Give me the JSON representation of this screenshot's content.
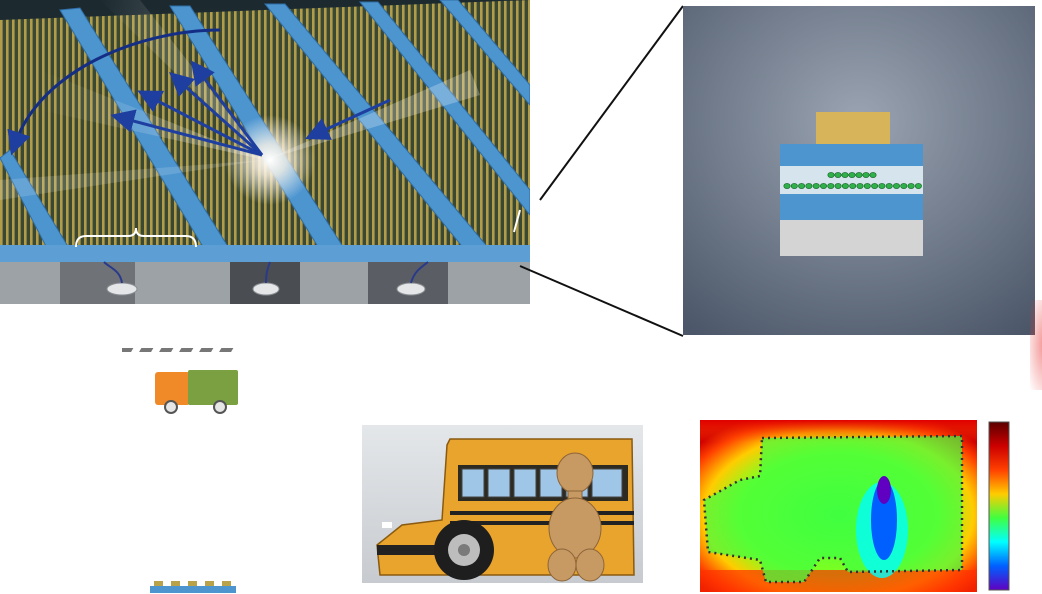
{
  "figure": {
    "panels": [
      "solar-panel-array-illustration",
      "pixel-layer-cross-section",
      "truck-icon",
      "sensor-strip-icon",
      "school-bus-photo",
      "reconstructed-heatmap",
      "heatmap-colorbar"
    ]
  },
  "colors": {
    "solar_blue": "#4d95cf",
    "gold_strips": "#b8a24a",
    "cross_section_bg": "#5e6a7d",
    "gold_contact": "#d7b45a",
    "green_dots": "#2fb04a",
    "bus_yellow": "#e8a42c",
    "truck_orange": "#f08a28",
    "truck_green": "#7aa042"
  },
  "colorbar_stops": [
    "#5b0000",
    "#cc0000",
    "#ff4000",
    "#ffcc00",
    "#40ff40",
    "#00ffff",
    "#0060ff",
    "#6000c0"
  ]
}
